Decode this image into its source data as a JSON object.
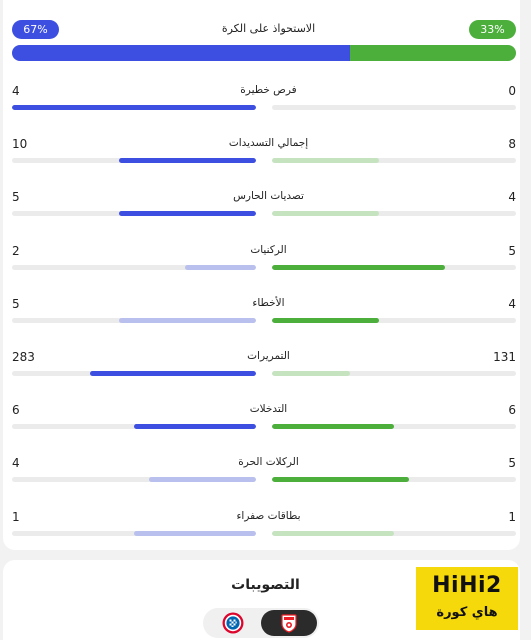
{
  "possession": {
    "label": "الاستحواذ على الكرة",
    "left_text": "67%",
    "right_text": "33%",
    "left_pct": 67,
    "right_pct": 33
  },
  "stats": [
    {
      "label": "فرص خطيرة",
      "left": "4",
      "right": "0",
      "left_frac": 1.0,
      "right_frac": 0.0,
      "left_color": "blue",
      "right_color": "green"
    },
    {
      "label": "إجمالي التسديدات",
      "left": "10",
      "right": "8",
      "left_frac": 0.56,
      "right_frac": 0.44,
      "left_color": "blue",
      "right_color": "green-light"
    },
    {
      "label": "تصديات الحارس",
      "left": "5",
      "right": "4",
      "left_frac": 0.56,
      "right_frac": 0.44,
      "left_color": "blue",
      "right_color": "green-light"
    },
    {
      "label": "الركنيات",
      "left": "2",
      "right": "5",
      "left_frac": 0.29,
      "right_frac": 0.71,
      "left_color": "blue-light",
      "right_color": "green"
    },
    {
      "label": "الأخطاء",
      "left": "5",
      "right": "4",
      "left_frac": 0.56,
      "right_frac": 0.44,
      "left_color": "blue-light",
      "right_color": "green"
    },
    {
      "label": "التمريرات",
      "left": "283",
      "right": "131",
      "left_frac": 0.68,
      "right_frac": 0.32,
      "left_color": "blue",
      "right_color": "green-light"
    },
    {
      "label": "التدخلات",
      "left": "6",
      "right": "6",
      "left_frac": 0.5,
      "right_frac": 0.5,
      "left_color": "blue",
      "right_color": "green"
    },
    {
      "label": "الركلات الحرة",
      "left": "4",
      "right": "5",
      "left_frac": 0.44,
      "right_frac": 0.56,
      "left_color": "blue-light",
      "right_color": "green"
    },
    {
      "label": "بطاقات صفراء",
      "left": "1",
      "right": "1",
      "left_frac": 0.5,
      "right_frac": 0.5,
      "left_color": "blue-light",
      "right_color": "green-light"
    }
  ],
  "shots_section": {
    "title": "التصويبات"
  },
  "teams": {
    "left_crest_icon": "bayern-crest-icon",
    "right_crest_icon": "koln-crest-icon"
  },
  "watermark": {
    "top": "HiHi2",
    "bottom": "هاي كورة"
  },
  "colors": {
    "blue": "#3d4fe0",
    "green": "#4caf3c"
  }
}
